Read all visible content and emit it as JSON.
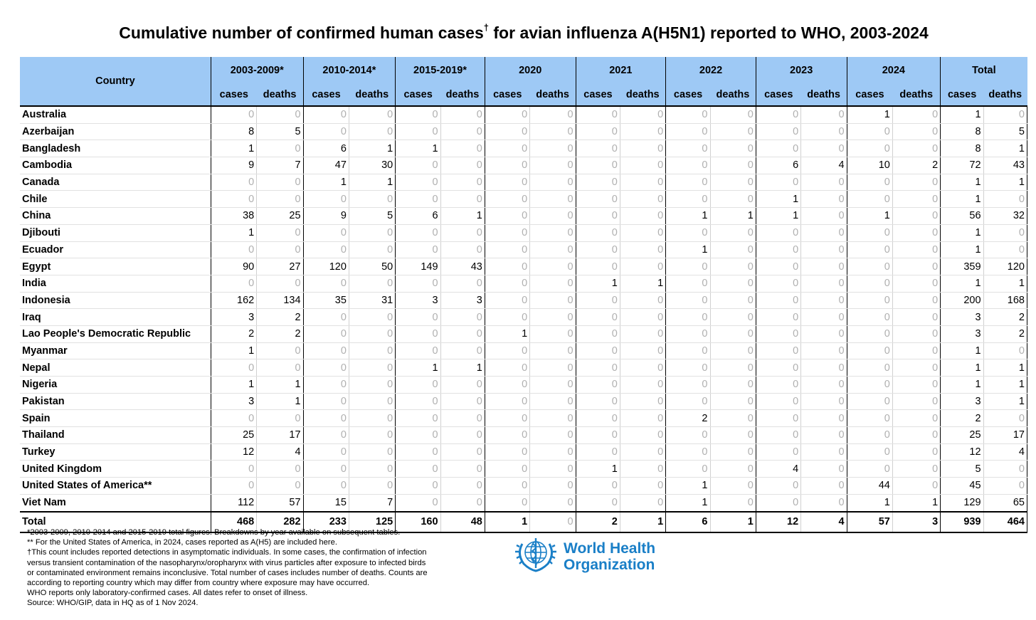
{
  "title": "Cumulative number of confirmed human cases",
  "title_mark": "†",
  "title_rest": " for avian influenza A(H5N1) reported to WHO, 2003-2024",
  "table": {
    "country_header": "Country",
    "periods": [
      "2003-2009*",
      "2010-2014*",
      "2015-2019*",
      "2020",
      "2021",
      "2022",
      "2023",
      "2024",
      "Total"
    ],
    "sub_cases": "cases",
    "sub_deaths": "deaths",
    "rows": [
      {
        "country": "Australia",
        "values": [
          "0",
          "0",
          "0",
          "0",
          "0",
          "0",
          "0",
          "0",
          "0",
          "0",
          "0",
          "0",
          "0",
          "0",
          "1",
          "0",
          "1",
          "0"
        ]
      },
      {
        "country": "Azerbaijan",
        "values": [
          "8",
          "5",
          "0",
          "0",
          "0",
          "0",
          "0",
          "0",
          "0",
          "0",
          "0",
          "0",
          "0",
          "0",
          "0",
          "0",
          "8",
          "5"
        ]
      },
      {
        "country": "Bangladesh",
        "values": [
          "1",
          "0",
          "6",
          "1",
          "1",
          "0",
          "0",
          "0",
          "0",
          "0",
          "0",
          "0",
          "0",
          "0",
          "0",
          "0",
          "8",
          "1"
        ]
      },
      {
        "country": "Cambodia",
        "values": [
          "9",
          "7",
          "47",
          "30",
          "0",
          "0",
          "0",
          "0",
          "0",
          "0",
          "0",
          "0",
          "6",
          "4",
          "10",
          "2",
          "72",
          "43"
        ]
      },
      {
        "country": "Canada",
        "values": [
          "0",
          "0",
          "1",
          "1",
          "0",
          "0",
          "0",
          "0",
          "0",
          "0",
          "0",
          "0",
          "0",
          "0",
          "0",
          "0",
          "1",
          "1"
        ]
      },
      {
        "country": "Chile",
        "values": [
          "0",
          "0",
          "0",
          "0",
          "0",
          "0",
          "0",
          "0",
          "0",
          "0",
          "0",
          "0",
          "1",
          "0",
          "0",
          "0",
          "1",
          "0"
        ]
      },
      {
        "country": "China",
        "values": [
          "38",
          "25",
          "9",
          "5",
          "6",
          "1",
          "0",
          "0",
          "0",
          "0",
          "1",
          "1",
          "1",
          "0",
          "1",
          "0",
          "56",
          "32"
        ]
      },
      {
        "country": "Djibouti",
        "values": [
          "1",
          "0",
          "0",
          "0",
          "0",
          "0",
          "0",
          "0",
          "0",
          "0",
          "0",
          "0",
          "0",
          "0",
          "0",
          "0",
          "1",
          "0"
        ]
      },
      {
        "country": "Ecuador",
        "values": [
          "0",
          "0",
          "0",
          "0",
          "0",
          "0",
          "0",
          "0",
          "0",
          "0",
          "1",
          "0",
          "0",
          "0",
          "0",
          "0",
          "1",
          "0"
        ]
      },
      {
        "country": "Egypt",
        "values": [
          "90",
          "27",
          "120",
          "50",
          "149",
          "43",
          "0",
          "0",
          "0",
          "0",
          "0",
          "0",
          "0",
          "0",
          "0",
          "0",
          "359",
          "120"
        ]
      },
      {
        "country": "India",
        "values": [
          "0",
          "0",
          "0",
          "0",
          "0",
          "0",
          "0",
          "0",
          "1",
          "1",
          "0",
          "0",
          "0",
          "0",
          "0",
          "0",
          "1",
          "1"
        ]
      },
      {
        "country": "Indonesia",
        "values": [
          "162",
          "134",
          "35",
          "31",
          "3",
          "3",
          "0",
          "0",
          "0",
          "0",
          "0",
          "0",
          "0",
          "0",
          "0",
          "0",
          "200",
          "168"
        ]
      },
      {
        "country": "Iraq",
        "values": [
          "3",
          "2",
          "0",
          "0",
          "0",
          "0",
          "0",
          "0",
          "0",
          "0",
          "0",
          "0",
          "0",
          "0",
          "0",
          "0",
          "3",
          "2"
        ]
      },
      {
        "country": "Lao People's Democratic Republic",
        "values": [
          "2",
          "2",
          "0",
          "0",
          "0",
          "0",
          "1",
          "0",
          "0",
          "0",
          "0",
          "0",
          "0",
          "0",
          "0",
          "0",
          "3",
          "2"
        ]
      },
      {
        "country": "Myanmar",
        "values": [
          "1",
          "0",
          "0",
          "0",
          "0",
          "0",
          "0",
          "0",
          "0",
          "0",
          "0",
          "0",
          "0",
          "0",
          "0",
          "0",
          "1",
          "0"
        ]
      },
      {
        "country": "Nepal",
        "values": [
          "0",
          "0",
          "0",
          "0",
          "1",
          "1",
          "0",
          "0",
          "0",
          "0",
          "0",
          "0",
          "0",
          "0",
          "0",
          "0",
          "1",
          "1"
        ]
      },
      {
        "country": "Nigeria",
        "values": [
          "1",
          "1",
          "0",
          "0",
          "0",
          "0",
          "0",
          "0",
          "0",
          "0",
          "0",
          "0",
          "0",
          "0",
          "0",
          "0",
          "1",
          "1"
        ]
      },
      {
        "country": "Pakistan",
        "values": [
          "3",
          "1",
          "0",
          "0",
          "0",
          "0",
          "0",
          "0",
          "0",
          "0",
          "0",
          "0",
          "0",
          "0",
          "0",
          "0",
          "3",
          "1"
        ]
      },
      {
        "country": "Spain",
        "values": [
          "0",
          "0",
          "0",
          "0",
          "0",
          "0",
          "0",
          "0",
          "0",
          "0",
          "2",
          "0",
          "0",
          "0",
          "0",
          "0",
          "2",
          "0"
        ]
      },
      {
        "country": "Thailand",
        "values": [
          "25",
          "17",
          "0",
          "0",
          "0",
          "0",
          "0",
          "0",
          "0",
          "0",
          "0",
          "0",
          "0",
          "0",
          "0",
          "0",
          "25",
          "17"
        ]
      },
      {
        "country": "Turkey",
        "values": [
          "12",
          "4",
          "0",
          "0",
          "0",
          "0",
          "0",
          "0",
          "0",
          "0",
          "0",
          "0",
          "0",
          "0",
          "0",
          "0",
          "12",
          "4"
        ]
      },
      {
        "country": "United Kingdom",
        "values": [
          "0",
          "0",
          "0",
          "0",
          "0",
          "0",
          "0",
          "0",
          "1",
          "0",
          "0",
          "0",
          "4",
          "0",
          "0",
          "0",
          "5",
          "0"
        ]
      },
      {
        "country": "United States of America**",
        "values": [
          "0",
          "0",
          "0",
          "0",
          "0",
          "0",
          "0",
          "0",
          "0",
          "0",
          "1",
          "0",
          "0",
          "0",
          "44",
          "0",
          "45",
          "0"
        ]
      },
      {
        "country": "Viet Nam",
        "values": [
          "112",
          "57",
          "15",
          "7",
          "0",
          "0",
          "0",
          "0",
          "0",
          "0",
          "1",
          "0",
          "0",
          "0",
          "1",
          "1",
          "129",
          "65"
        ]
      }
    ],
    "total_label": "Total",
    "totals": [
      "468",
      "282",
      "233",
      "125",
      "160",
      "48",
      "1",
      "0",
      "2",
      "1",
      "6",
      "1",
      "12",
      "4",
      "57",
      "3",
      "939",
      "464"
    ]
  },
  "notes": {
    "n1": "*2003-2009, 2010-2014 and 2015-2019 total figures. Breakdowns by year available on subsequent tables.",
    "n2": "** For the United States of America, in 2024, cases reported as A(H5) are included here.",
    "n3": "†This count includes reported detections in asymptomatic individuals. In some cases, the confirmation of infection",
    "n4": "versus transient contamination of the nasopharynx/oropharynx with virus particles after exposure to infected birds",
    "n5": "or contaminated environment remains inconclusive. Total number of cases includes number of deaths. Counts are",
    "n6": "according to reporting country which may differ from country where exposure may have occurred.",
    "n7": "WHO reports only laboratory-confirmed cases. All dates refer to onset of illness.",
    "n8": "Source: WHO/GIP, data in HQ as of 1 Nov 2024."
  },
  "logo": {
    "line1": "World Health",
    "line2": "Organization",
    "icon": "who-emblem-icon",
    "color": "#1a7fc7"
  }
}
